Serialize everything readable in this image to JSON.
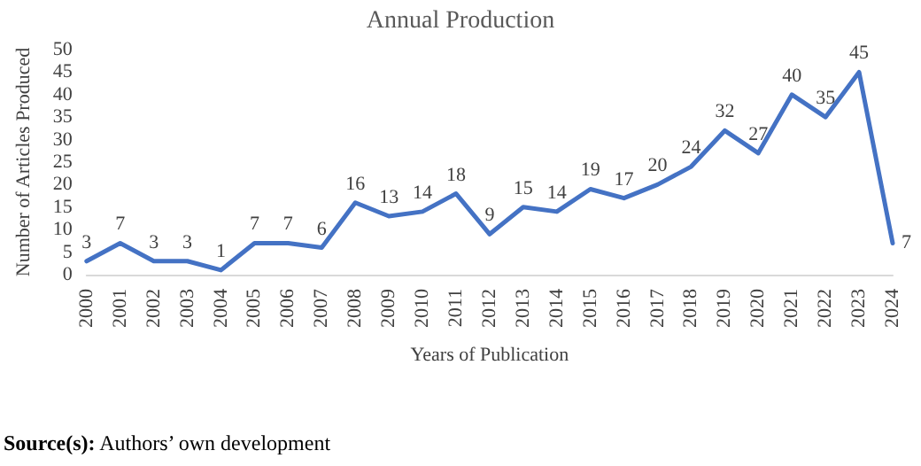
{
  "chart_data": {
    "type": "line",
    "title": "Annual Production",
    "xlabel": "Years of Publication",
    "ylabel": "Number of Articles Produced",
    "categories": [
      "2000",
      "2001",
      "2002",
      "2003",
      "2004",
      "2005",
      "2006",
      "2007",
      "2008",
      "2009",
      "2010",
      "2011",
      "2012",
      "2013",
      "2014",
      "2015",
      "2016",
      "2017",
      "2018",
      "2019",
      "2020",
      "2021",
      "2022",
      "2023",
      "2024"
    ],
    "series": [
      {
        "color": "#4472c4",
        "values": [
          3,
          7,
          3,
          3,
          1,
          7,
          7,
          6,
          16,
          13,
          14,
          18,
          9,
          15,
          14,
          19,
          17,
          20,
          24,
          32,
          27,
          40,
          35,
          45,
          7
        ]
      }
    ],
    "ylim": [
      0,
      50
    ],
    "yticks": [
      0,
      5,
      10,
      15,
      20,
      25,
      30,
      35,
      40,
      45,
      50
    ],
    "grid": false,
    "marker": "none",
    "line_style": "solid",
    "data_labels": true,
    "annotations": [
      "Source(s): Authors’ own development"
    ]
  }
}
